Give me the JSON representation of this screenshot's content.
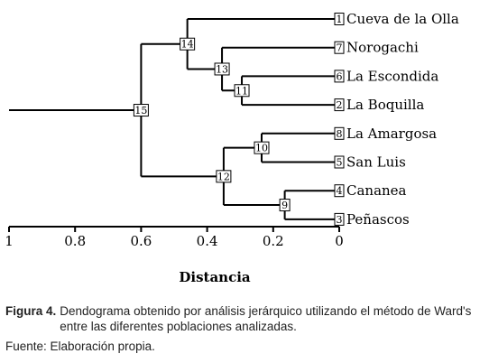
{
  "axis": {
    "title": "Distancia",
    "min": 0,
    "max": 1,
    "ticks": [
      {
        "value": 1,
        "label": "1"
      },
      {
        "value": 0.8,
        "label": "0.8"
      },
      {
        "value": 0.6,
        "label": "0.6"
      },
      {
        "value": 0.4,
        "label": "0.4"
      },
      {
        "value": 0.2,
        "label": "0.2"
      },
      {
        "value": 0,
        "label": "0"
      }
    ]
  },
  "leaves": [
    {
      "id": "1",
      "label": "Cueva de la Olla"
    },
    {
      "id": "7",
      "label": "Norogachi"
    },
    {
      "id": "6",
      "label": "La Escondida"
    },
    {
      "id": "2",
      "label": "La Boquilla"
    },
    {
      "id": "8",
      "label": "La Amargosa"
    },
    {
      "id": "5",
      "label": "San Luis"
    },
    {
      "id": "4",
      "label": "Cananea"
    },
    {
      "id": "3",
      "label": "Peñascos"
    }
  ],
  "merges": [
    {
      "id": "9",
      "height": 0.165,
      "children": [
        "4",
        "3"
      ]
    },
    {
      "id": "10",
      "height": 0.235,
      "children": [
        "8",
        "5"
      ]
    },
    {
      "id": "11",
      "height": 0.295,
      "children": [
        "6",
        "2"
      ]
    },
    {
      "id": "12",
      "height": 0.35,
      "children": [
        "10",
        "9"
      ]
    },
    {
      "id": "13",
      "height": 0.355,
      "children": [
        "7",
        "11"
      ]
    },
    {
      "id": "14",
      "height": 0.46,
      "children": [
        "1",
        "13"
      ]
    },
    {
      "id": "15",
      "height": 0.6,
      "children": [
        "14",
        "12"
      ]
    }
  ],
  "root_tail_to": 1.0,
  "caption": {
    "figure_label": "Figura 4.",
    "text": "Dendograma obtenido por análisis jerárquico utilizando el método de Ward's entre las diferentes poblaciones analizadas.",
    "source": "Fuente: Elaboración propia."
  }
}
